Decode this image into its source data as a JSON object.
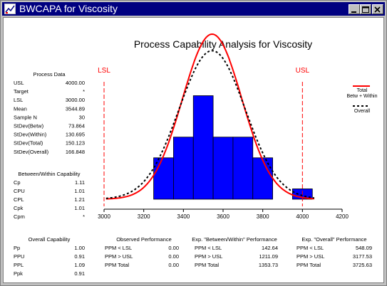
{
  "window": {
    "title": "BWCAPA for Viscosity",
    "icons": {
      "app": "chart-icon",
      "minimize": "minimize-icon",
      "maximize": "maximize-icon",
      "close": "close-icon"
    }
  },
  "process_data": {
    "heading": "Process Data",
    "rows": [
      {
        "label": "USL",
        "value": "4000.00"
      },
      {
        "label": "Target",
        "value": "*"
      },
      {
        "label": "LSL",
        "value": "3000.00"
      },
      {
        "label": "Mean",
        "value": "3544.89"
      },
      {
        "label": "Sample N",
        "value": "30"
      },
      {
        "label": "StDev(Betw)",
        "value": "73.864"
      },
      {
        "label": "StDev(Within)",
        "value": "130.695"
      },
      {
        "label": "StDev(Total)",
        "value": "150.123"
      },
      {
        "label": "StDev(Overall)",
        "value": "166.848"
      }
    ]
  },
  "between_within": {
    "heading": "Between/Within Capability",
    "rows": [
      {
        "label": "Cp",
        "value": "1.11"
      },
      {
        "label": "CPU",
        "value": "1.01"
      },
      {
        "label": "CPL",
        "value": "1.21"
      },
      {
        "label": "Cpk",
        "value": "1.01"
      },
      {
        "label": "Cpm",
        "value": "*"
      }
    ]
  },
  "overall_capability": {
    "heading": "Overall Capability",
    "rows": [
      {
        "label": "Pp",
        "value": "1.00"
      },
      {
        "label": "PPU",
        "value": "0.91"
      },
      {
        "label": "PPL",
        "value": "1.09"
      },
      {
        "label": "Ppk",
        "value": "0.91"
      }
    ]
  },
  "observed": {
    "heading": "Observed Performance",
    "rows": [
      {
        "label": "PPM < LSL",
        "value": "0.00"
      },
      {
        "label": "PPM > USL",
        "value": "0.00"
      },
      {
        "label": "PPM Total",
        "value": "0.00"
      }
    ]
  },
  "exp_bw": {
    "heading": "Exp. \"Between/Within\" Performance",
    "rows": [
      {
        "label": "PPM < LSL",
        "value": "142.64"
      },
      {
        "label": "PPM > USL",
        "value": "1211.09"
      },
      {
        "label": "PPM Total",
        "value": "1353.73"
      }
    ]
  },
  "exp_overall": {
    "heading": "Exp. \"Overall\" Performance",
    "rows": [
      {
        "label": "PPM < LSL",
        "value": "548.09"
      },
      {
        "label": "PPM > USL",
        "value": "3177.53"
      },
      {
        "label": "PPM Total",
        "value": "3725.63"
      }
    ]
  },
  "colors": {
    "bar": "#0000ff",
    "bar_edge": "#000000",
    "spec_line": "#ff0000",
    "total_curve": "#ff0000",
    "overall_curve": "#000000",
    "titlebar": "#000080"
  },
  "chart_data": {
    "type": "bar",
    "title": "Process Capability Analysis for Viscosity",
    "xlim": [
      3000,
      4200
    ],
    "xticks": [
      "3000",
      "3200",
      "3400",
      "3600",
      "3800",
      "4000",
      "4200"
    ],
    "bins": [
      {
        "start": 3250,
        "end": 3350,
        "count": 2
      },
      {
        "start": 3350,
        "end": 3450,
        "count": 3
      },
      {
        "start": 3450,
        "end": 3550,
        "count": 5
      },
      {
        "start": 3550,
        "end": 3650,
        "count": 3
      },
      {
        "start": 3650,
        "end": 3750,
        "count": 3
      },
      {
        "start": 3750,
        "end": 3850,
        "count": 2
      },
      {
        "start": 3850,
        "end": 3950,
        "count": 0
      },
      {
        "start": 3950,
        "end": 4050,
        "count": 0.5
      }
    ],
    "spec_limits": [
      {
        "label": "LSL",
        "value": 3000
      },
      {
        "label": "USL",
        "value": 4000
      }
    ],
    "curves": [
      {
        "name": "Total",
        "name2": "Betw + Within",
        "mean": 3544.89,
        "sd": 150.123,
        "style": "solid"
      },
      {
        "name": "Overall",
        "mean": 3544.89,
        "sd": 166.848,
        "style": "dashed"
      }
    ],
    "legend": "right"
  }
}
